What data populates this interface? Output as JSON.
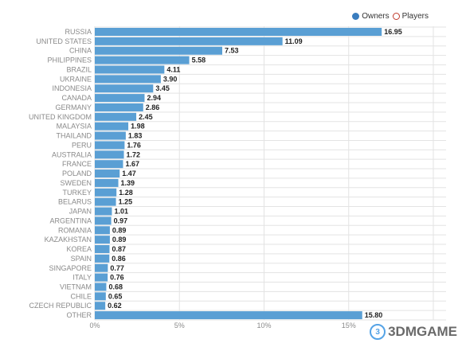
{
  "legend": {
    "items": [
      {
        "label": "Owners",
        "color": "#3a7dbf"
      },
      {
        "label": "Players",
        "color": "#c0392b"
      }
    ]
  },
  "watermark": {
    "text": "3DMGAME"
  },
  "chart_data": {
    "type": "bar",
    "orientation": "horizontal",
    "categories": [
      "RUSSIA",
      "UNITED STATES",
      "CHINA",
      "PHILIPPINES",
      "BRAZIL",
      "UKRAINE",
      "INDONESIA",
      "CANADA",
      "GERMANY",
      "UNITED KINGDOM",
      "MALAYSIA",
      "THAILAND",
      "PERU",
      "AUSTRALIA",
      "FRANCE",
      "POLAND",
      "SWEDEN",
      "TURKEY",
      "BELARUS",
      "JAPAN",
      "ARGENTINA",
      "ROMANIA",
      "KAZAKHSTAN",
      "KOREA",
      "SPAIN",
      "SINGAPORE",
      "ITALY",
      "VIETNAM",
      "CHILE",
      "CZECH REPUBLIC",
      "OTHER"
    ],
    "series": [
      {
        "name": "Owners",
        "values": [
          16.95,
          11.09,
          7.53,
          5.58,
          4.11,
          3.9,
          3.45,
          2.94,
          2.86,
          2.45,
          1.98,
          1.83,
          1.76,
          1.72,
          1.67,
          1.47,
          1.39,
          1.28,
          1.25,
          1.01,
          0.97,
          0.89,
          0.89,
          0.87,
          0.86,
          0.77,
          0.76,
          0.68,
          0.65,
          0.62,
          15.8
        ],
        "value_labels": [
          "16.95",
          "11.09",
          "7.53",
          "5.58",
          "4.11",
          "3.90",
          "3.45",
          "2.94",
          "2.86",
          "2.45",
          "1.98",
          "1.83",
          "1.76",
          "1.72",
          "1.67",
          "1.47",
          "1.39",
          "1.28",
          "1.25",
          "1.01",
          "0.97",
          "0.89",
          "0.89",
          "0.87",
          "0.86",
          "0.77",
          "0.76",
          "0.68",
          "0.65",
          "0.62",
          "15.80"
        ]
      }
    ],
    "x_ticks": [
      "0%",
      "5%",
      "10%",
      "15%"
    ],
    "x_tick_values": [
      0,
      5,
      10,
      15
    ],
    "xlim": [
      0,
      20
    ],
    "grid": true,
    "legend_placement": "top-right",
    "bar_color": "#5a9fd4"
  }
}
